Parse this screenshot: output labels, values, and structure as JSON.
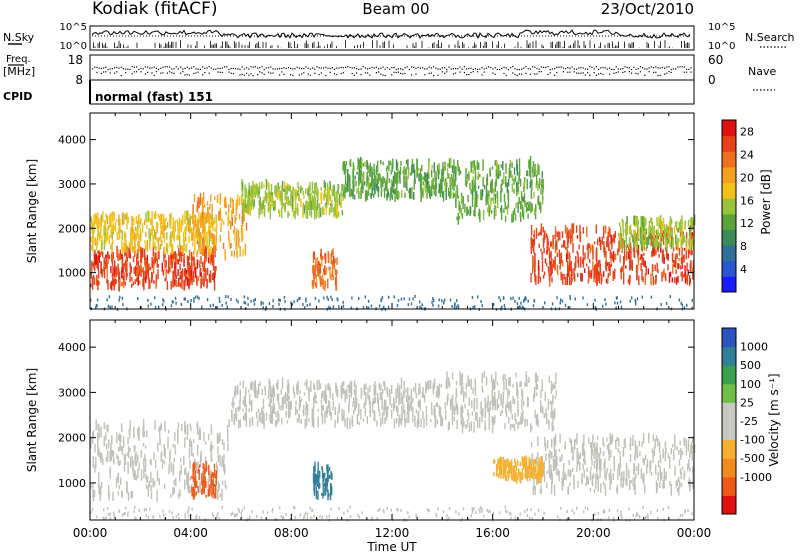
{
  "header": {
    "station": "Kodiak (fitACF)",
    "beam": "Beam 00",
    "date": "23/Oct/2010"
  },
  "noise_panel": {
    "left_label": "N.Sky",
    "right_label": "N.Search",
    "left_ticks": [
      "10^5",
      "10^0"
    ],
    "right_ticks": [
      "10^5",
      "10^0"
    ]
  },
  "freq_panel": {
    "left_label_1": "Freq.",
    "left_label_2": "[MHz]",
    "left_ticks": [
      "18",
      "8"
    ],
    "right_label": "Nave",
    "right_ticks": [
      "60",
      "0"
    ]
  },
  "cpid": {
    "label": "CPID",
    "value": "normal (fast) 151"
  },
  "colors": {
    "power_scale": [
      "#1a1aff",
      "#2a55d0",
      "#2f6f9a",
      "#3a8a5a",
      "#5aa53a",
      "#9bc33a",
      "#f2c21a",
      "#f5a020",
      "#f07020",
      "#e84018",
      "#e01010"
    ],
    "velocity_scale": [
      "#e01010",
      "#f05818",
      "#f08c1c",
      "#f5b030",
      "#c8c8c0",
      "#c8c8c0",
      "#6fc04a",
      "#3aa04a",
      "#2f7f9a",
      "#2a55c0"
    ],
    "ground_scatter": "#c0c0b8"
  },
  "chart_data": [
    {
      "type": "heatmap",
      "title": "",
      "xlabel": "Time UT",
      "ylabel": "Slant Range [km]",
      "xlim": [
        "00:00",
        "24:00"
      ],
      "ylim": [
        180,
        4600
      ],
      "x_ticks": [
        "00:00",
        "04:00",
        "08:00",
        "12:00",
        "16:00",
        "20:00",
        "00:00"
      ],
      "y_ticks": [
        1000,
        2000,
        3000,
        4000
      ],
      "colorbar": {
        "label": "Power [dB]",
        "range": [
          0,
          30
        ],
        "ticks": [
          4,
          8,
          12,
          16,
          20,
          24,
          28
        ]
      },
      "scatter_regions": [
        {
          "t_start": 0.0,
          "t_end": 5.0,
          "range_km": [
            700,
            1500
          ],
          "power_db": 27
        },
        {
          "t_start": 0.0,
          "t_end": 5.0,
          "range_km": [
            1500,
            2300
          ],
          "power_db": 18
        },
        {
          "t_start": 4.0,
          "t_end": 6.2,
          "range_km": [
            1400,
            2700
          ],
          "power_db": 22
        },
        {
          "t_start": 6.0,
          "t_end": 10.0,
          "range_km": [
            2300,
            3000
          ],
          "power_db": 14
        },
        {
          "t_start": 10.0,
          "t_end": 14.5,
          "range_km": [
            2700,
            3500
          ],
          "power_db": 12
        },
        {
          "t_start": 8.8,
          "t_end": 9.8,
          "range_km": [
            700,
            1500
          ],
          "power_db": 24
        },
        {
          "t_start": 14.5,
          "t_end": 18.0,
          "range_km": [
            2200,
            3500
          ],
          "power_db": 13
        },
        {
          "t_start": 17.5,
          "t_end": 24.0,
          "range_km": [
            800,
            2000
          ],
          "power_db": 26
        },
        {
          "t_start": 21.0,
          "t_end": 24.0,
          "range_km": [
            1600,
            2200
          ],
          "power_db": 16
        }
      ]
    },
    {
      "type": "heatmap",
      "title": "",
      "xlabel": "Time UT",
      "ylabel": "Slant Range [km]",
      "xlim": [
        "00:00",
        "24:00"
      ],
      "ylim": [
        180,
        4600
      ],
      "x_ticks": [
        "00:00",
        "04:00",
        "08:00",
        "12:00",
        "16:00",
        "20:00",
        "00:00"
      ],
      "y_ticks": [
        1000,
        2000,
        3000,
        4000
      ],
      "colorbar": {
        "label": "Velocity [m s⁻¹]",
        "tick_labels": [
          "1000",
          "500",
          "100",
          "25",
          "-25",
          "-100",
          "-500",
          "-1000"
        ]
      },
      "scatter_regions": [
        {
          "t_start": 0.0,
          "t_end": 5.5,
          "range_km": [
            700,
            2300
          ],
          "velocity_ms": 0,
          "ground_scatter": true
        },
        {
          "t_start": 5.5,
          "t_end": 14.0,
          "range_km": [
            2300,
            3200
          ],
          "velocity_ms": 0,
          "ground_scatter": true
        },
        {
          "t_start": 14.0,
          "t_end": 18.5,
          "range_km": [
            2200,
            3400
          ],
          "velocity_ms": 0,
          "ground_scatter": true
        },
        {
          "t_start": 17.5,
          "t_end": 24.0,
          "range_km": [
            800,
            2000
          ],
          "velocity_ms": 0,
          "ground_scatter": true
        },
        {
          "t_start": 4.0,
          "t_end": 5.0,
          "range_km": [
            700,
            1400
          ],
          "velocity_ms": -300
        },
        {
          "t_start": 8.8,
          "t_end": 9.6,
          "range_km": [
            700,
            1400
          ],
          "velocity_ms": 400
        },
        {
          "t_start": 16.0,
          "t_end": 18.0,
          "range_km": [
            1100,
            1500
          ],
          "velocity_ms": -200
        }
      ]
    }
  ]
}
